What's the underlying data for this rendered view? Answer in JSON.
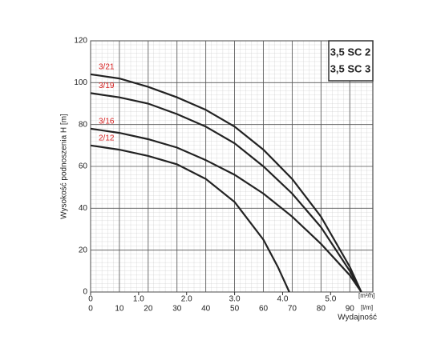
{
  "chart_data": {
    "type": "line",
    "y_label": "Wysokość podnoszenia H [m]",
    "x_label": "Wydajność",
    "x_unit": "[l/m]",
    "x2_unit": "[m³/h]",
    "box_lines": [
      "3,5 SC 2",
      "3,5 SC 3"
    ],
    "xlim": [
      0,
      98
    ],
    "xticks": [
      0,
      10,
      20,
      30,
      40,
      50,
      60,
      70,
      80,
      90
    ],
    "x2lim": [
      0,
      5.88
    ],
    "x2ticks": [
      0,
      {
        "value": 1,
        "label": "1.0"
      },
      {
        "value": 2,
        "label": "2.0"
      },
      {
        "value": 3,
        "label": "3.0"
      },
      {
        "value": 4,
        "label": "4.0"
      },
      {
        "value": 5,
        "label": "5.0"
      }
    ],
    "ylim": [
      0,
      120
    ],
    "yticks": [
      0,
      20,
      40,
      60,
      80,
      100,
      120
    ],
    "grid": true,
    "label_color": "#d62020",
    "series": [
      {
        "name": "3/21",
        "color": "#222222",
        "x": [
          0,
          10,
          20,
          30,
          40,
          50,
          60,
          70,
          80,
          90,
          94
        ],
        "values": [
          104,
          102,
          98,
          93,
          87,
          79,
          68,
          54,
          36,
          12,
          0
        ]
      },
      {
        "name": "3/19",
        "color": "#222222",
        "x": [
          0,
          10,
          20,
          30,
          40,
          50,
          60,
          70,
          80,
          90,
          94
        ],
        "values": [
          95,
          93,
          90,
          85,
          79,
          71,
          60,
          47,
          31,
          10,
          0
        ]
      },
      {
        "name": "3/16",
        "color": "#222222",
        "x": [
          0,
          10,
          20,
          30,
          40,
          50,
          60,
          70,
          80,
          90,
          94
        ],
        "values": [
          78,
          76,
          73,
          69,
          63,
          56,
          47,
          36,
          23,
          8,
          0
        ]
      },
      {
        "name": "2/12",
        "color": "#222222",
        "x": [
          0,
          10,
          20,
          30,
          40,
          50,
          60,
          65,
          69
        ],
        "values": [
          70,
          68,
          65,
          61,
          54,
          43,
          25,
          12,
          0
        ]
      }
    ]
  }
}
